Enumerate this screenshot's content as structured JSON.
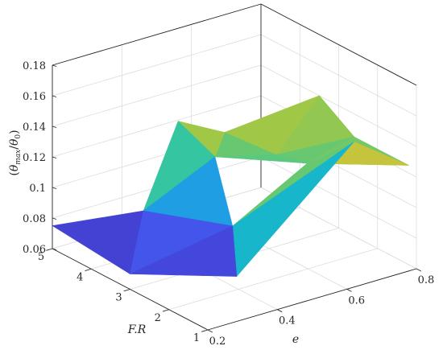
{
  "chart_data": {
    "type": "surface",
    "title": "",
    "xlabel": "e",
    "ylabel": "F.R",
    "zlabel": "(θ_max/θ_0)",
    "zlabel_parts": {
      "open": "(",
      "theta1": "θ",
      "sub1": "max",
      "slash": "/",
      "theta2": "θ",
      "sub2": "0",
      "close": ")"
    },
    "x_ticks": [
      "0.2",
      "0.4",
      "0.6",
      "0.8"
    ],
    "y_ticks": [
      "1",
      "2",
      "3",
      "4",
      "5"
    ],
    "z_ticks": [
      "0.06",
      "0.08",
      "0.1",
      "0.12",
      "0.14",
      "0.16",
      "0.18"
    ],
    "xlim": [
      0.2,
      0.8
    ],
    "ylim": [
      1,
      5
    ],
    "zlim": [
      0.06,
      0.18
    ],
    "colormap": "parula",
    "grid": true,
    "surface_triangles": [
      {
        "v": [
          [
            0.2,
            5,
            0.075
          ],
          [
            0.35,
            4,
            0.088
          ],
          [
            0.2,
            3,
            0.07
          ]
        ]
      },
      {
        "v": [
          [
            0.2,
            3,
            0.07
          ],
          [
            0.35,
            4,
            0.088
          ],
          [
            0.45,
            2.6,
            0.09
          ]
        ]
      },
      {
        "v": [
          [
            0.2,
            3,
            0.07
          ],
          [
            0.45,
            2.6,
            0.09
          ],
          [
            0.35,
            1.6,
            0.077
          ]
        ]
      },
      {
        "v": [
          [
            0.35,
            1.6,
            0.077
          ],
          [
            0.45,
            2.6,
            0.09
          ],
          [
            0.62,
            1,
            0.155
          ]
        ]
      },
      {
        "v": [
          [
            0.45,
            2.6,
            0.09
          ],
          [
            0.62,
            1,
            0.155
          ],
          [
            0.62,
            2.2,
            0.125
          ]
        ]
      },
      {
        "v": [
          [
            0.62,
            2.2,
            0.125
          ],
          [
            0.62,
            1,
            0.155
          ],
          [
            0.8,
            1.2,
            0.125
          ]
        ]
      },
      {
        "v": [
          [
            0.62,
            2.2,
            0.125
          ],
          [
            0.8,
            1.2,
            0.125
          ],
          [
            0.8,
            2.6,
            0.125
          ]
        ]
      },
      {
        "v": [
          [
            0.35,
            4,
            0.088
          ],
          [
            0.45,
            4,
            0.14
          ],
          [
            0.5,
            3.5,
            0.12
          ]
        ]
      },
      {
        "v": [
          [
            0.45,
            4,
            0.14
          ],
          [
            0.55,
            3.7,
            0.13
          ],
          [
            0.5,
            3.5,
            0.12
          ]
        ]
      },
      {
        "v": [
          [
            0.35,
            4,
            0.088
          ],
          [
            0.5,
            3.5,
            0.12
          ],
          [
            0.45,
            2.6,
            0.09
          ]
        ]
      },
      {
        "v": [
          [
            0.5,
            3.5,
            0.12
          ],
          [
            0.55,
            3.7,
            0.13
          ],
          [
            0.62,
            3.0,
            0.12
          ]
        ]
      },
      {
        "v": [
          [
            0.5,
            3.5,
            0.12
          ],
          [
            0.62,
            3.0,
            0.12
          ],
          [
            0.62,
            2.2,
            0.125
          ]
        ]
      },
      {
        "v": [
          [
            0.55,
            3.7,
            0.13
          ],
          [
            0.8,
            3.5,
            0.14
          ],
          [
            0.62,
            3.0,
            0.12
          ]
        ]
      },
      {
        "v": [
          [
            0.62,
            3.0,
            0.12
          ],
          [
            0.8,
            3.5,
            0.14
          ],
          [
            0.8,
            2.6,
            0.125
          ]
        ]
      },
      {
        "v": [
          [
            0.62,
            3.0,
            0.12
          ],
          [
            0.8,
            2.6,
            0.125
          ],
          [
            0.62,
            2.2,
            0.125
          ]
        ]
      }
    ]
  }
}
